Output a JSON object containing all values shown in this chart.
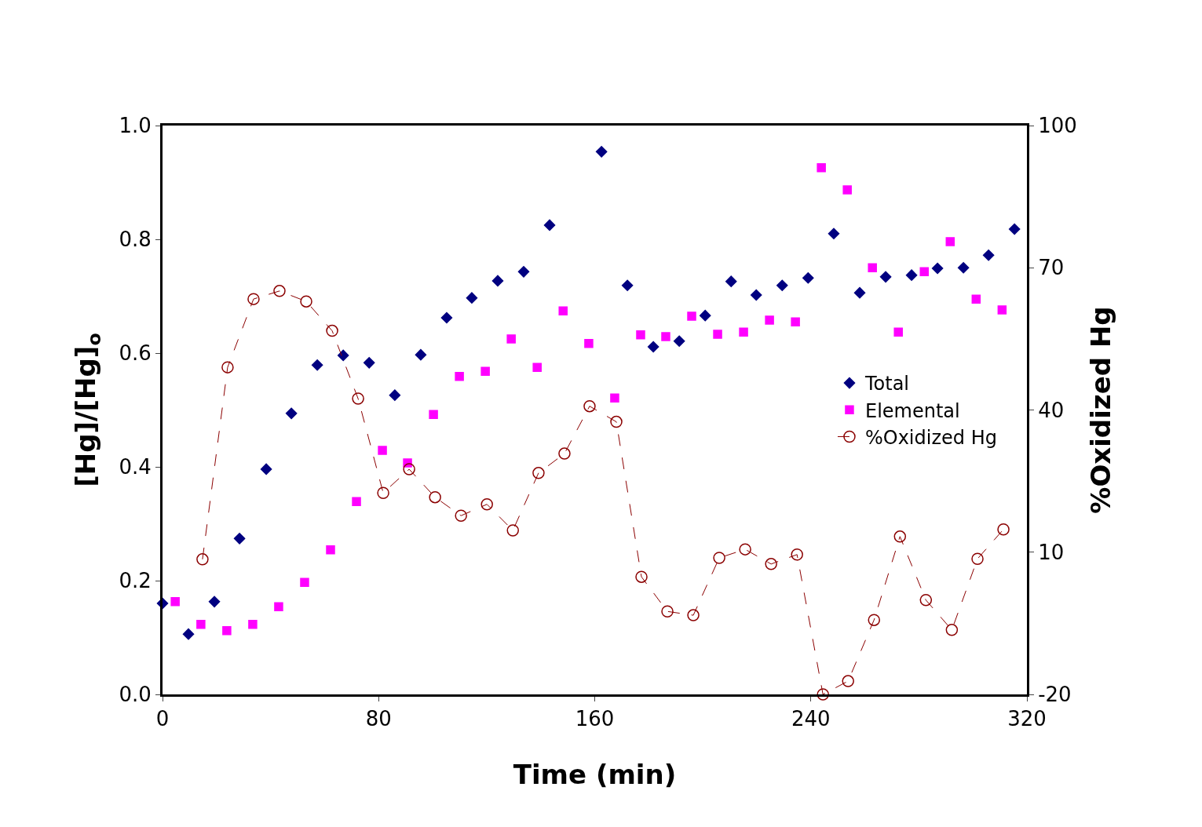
{
  "chart_data": {
    "type": "scatter",
    "xlabel": "Time (min)",
    "ylabel": "[Hg]/[Hg]$_{o}$",
    "y2label": "%Oxidized Hg",
    "xlim": [
      0,
      320
    ],
    "xticks": [
      0,
      80,
      160,
      240,
      320
    ],
    "ylim": [
      0,
      1
    ],
    "yticks": [
      {
        "value": 0,
        "label": "0.0"
      },
      {
        "value": 0.2,
        "label": "0.2"
      },
      {
        "value": 0.4,
        "label": "0.4"
      },
      {
        "value": 0.6,
        "label": "0.6"
      },
      {
        "value": 0.8,
        "label": "0.8"
      },
      {
        "value": 1,
        "label": "1.0"
      }
    ],
    "y2lim": [
      -20,
      100
    ],
    "y2ticks": [
      -20,
      10,
      40,
      70,
      100
    ],
    "grid": false,
    "legend": "right",
    "series": [
      {
        "name": "Total",
        "type": "scatter",
        "marker": "diamond",
        "color": "#000080",
        "x": [
          0,
          9.6,
          19.2,
          28.5,
          38.4,
          47.7,
          57.3,
          66.9,
          76.5,
          86,
          95.6,
          105.2,
          114.5,
          124.1,
          133.7,
          143.3,
          162.5,
          172.1,
          181.7,
          191.3,
          200.9,
          210.5,
          219.8,
          229.4,
          239,
          248.5,
          258.1,
          267.7,
          277.3,
          286.9,
          296.5,
          305.8,
          315.4
        ],
        "values": [
          0.16,
          0.106,
          0.163,
          0.274,
          0.396,
          0.494,
          0.579,
          0.596,
          0.583,
          0.526,
          0.597,
          0.662,
          0.697,
          0.727,
          0.743,
          0.825,
          0.954,
          0.719,
          0.611,
          0.621,
          0.666,
          0.726,
          0.702,
          0.719,
          0.732,
          0.81,
          0.706,
          0.734,
          0.737,
          0.749,
          0.75,
          0.772,
          0.818
        ]
      },
      {
        "name": "Elemental",
        "type": "scatter",
        "marker": "square",
        "color": "#ff00ff",
        "x": [
          4.7,
          14.2,
          23.8,
          33.4,
          43,
          52.6,
          62.2,
          71.8,
          81.4,
          90.7,
          100.3,
          109.9,
          119.5,
          129.1,
          138.7,
          148.3,
          157.8,
          167.4,
          177,
          186.3,
          195.9,
          205.5,
          215.1,
          224.7,
          234.3,
          243.9,
          253.5,
          262.8,
          272.4,
          282,
          291.6,
          301.2,
          310.8
        ],
        "values": [
          0.163,
          0.123,
          0.112,
          0.123,
          0.154,
          0.197,
          0.254,
          0.339,
          0.429,
          0.407,
          0.492,
          0.559,
          0.568,
          0.625,
          0.575,
          0.674,
          0.617,
          0.521,
          0.632,
          0.629,
          0.665,
          0.633,
          0.637,
          0.658,
          0.655,
          0.926,
          0.887,
          0.75,
          0.637,
          0.743,
          0.796,
          0.695,
          0.676
        ]
      },
      {
        "name": "%Oxidized Hg",
        "type": "line",
        "axis": "y2",
        "marker": "circle",
        "line_style": "dashed",
        "color": "#8b0000",
        "x": [
          14.8,
          24.1,
          33.7,
          43.3,
          53.2,
          62.8,
          72.4,
          81.7,
          91.3,
          100.9,
          110.5,
          120.1,
          129.7,
          139.2,
          148.8,
          158.1,
          168,
          177.3,
          186.9,
          196.5,
          206.1,
          215.7,
          225.3,
          234.9,
          244.5,
          253.8,
          263.4,
          273,
          282.6,
          292.2,
          301.7,
          311.3
        ],
        "values": [
          8.5,
          49,
          63.4,
          65.1,
          62.9,
          56.7,
          42.4,
          22.5,
          27.5,
          21.6,
          17.7,
          20.1,
          14.6,
          26.7,
          30.8,
          40.8,
          37.5,
          4.8,
          -2.5,
          -3.3,
          8.8,
          10.6,
          7.5,
          9.5,
          -20,
          -17.2,
          -4.3,
          13.3,
          -0.1,
          -6.4,
          8.6,
          14.8
        ]
      }
    ]
  }
}
